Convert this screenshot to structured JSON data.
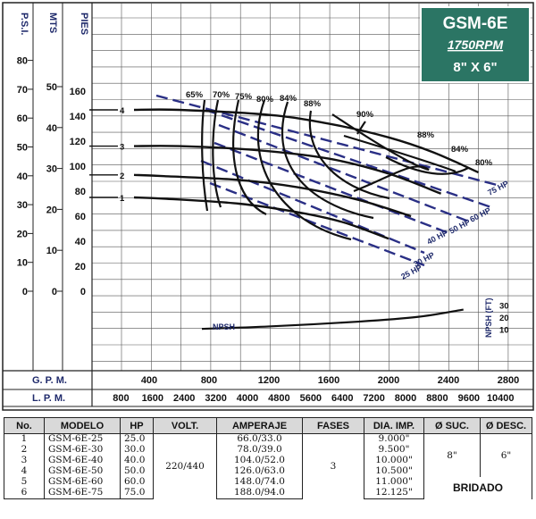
{
  "badge": {
    "model": "GSM-6E",
    "rpm": "1750RPM",
    "size": "8\" X 6\""
  },
  "chart_data": {
    "type": "line",
    "axes": {
      "psi": {
        "title": "P.S.I.",
        "ticks": [
          0,
          10,
          20,
          30,
          40,
          50,
          60,
          70,
          80
        ]
      },
      "mts": {
        "title": "MTS",
        "ticks": [
          0,
          10,
          20,
          30,
          40,
          50
        ]
      },
      "pies": {
        "title": "PIES",
        "ticks": [
          0,
          20,
          40,
          60,
          80,
          100,
          120,
          140,
          160
        ]
      },
      "gpm": {
        "title": "G. P. M.",
        "ticks": [
          400,
          800,
          1200,
          1600,
          2000,
          2400,
          2800
        ]
      },
      "lpm": {
        "title": "L. P. M.",
        "ticks": [
          800,
          1600,
          2400,
          3200,
          4000,
          4800,
          5600,
          6400,
          7200,
          8000,
          8800,
          9600,
          10400
        ]
      },
      "npsh": {
        "title": "NPSH (FT)",
        "ticks": [
          10,
          20,
          30
        ]
      }
    },
    "head_curves": [
      {
        "name": "1",
        "points": [
          [
            0,
            75
          ],
          [
            500,
            74
          ],
          [
            1000,
            70
          ],
          [
            1400,
            63
          ],
          [
            1700,
            55
          ],
          [
            2000,
            42
          ]
        ]
      },
      {
        "name": "2",
        "points": [
          [
            0,
            93
          ],
          [
            500,
            92
          ],
          [
            1000,
            89
          ],
          [
            1400,
            83
          ],
          [
            1800,
            73
          ],
          [
            2150,
            60
          ]
        ]
      },
      {
        "name": "3",
        "points": [
          [
            0,
            116
          ],
          [
            600,
            116
          ],
          [
            1100,
            113
          ],
          [
            1600,
            106
          ],
          [
            2000,
            94
          ],
          [
            2350,
            78
          ]
        ]
      },
      {
        "name": "4",
        "points": [
          [
            0,
            145
          ],
          [
            600,
            145
          ],
          [
            1200,
            141
          ],
          [
            1600,
            134
          ],
          [
            2000,
            123
          ],
          [
            2300,
            111
          ],
          [
            2600,
            95
          ]
        ]
      }
    ],
    "efficiency_labels": [
      "65%",
      "70%",
      "75%",
      "80%",
      "84%",
      "88%",
      "90%",
      "88%",
      "84%",
      "80%"
    ],
    "hp_lines": [
      "25 HP",
      "30 HP",
      "40 HP",
      "50 HP",
      "60 HP",
      "75 HP"
    ],
    "npsh_label": "NPSH",
    "npsh_curve": {
      "points": [
        [
          600,
          11
        ],
        [
          1200,
          13
        ],
        [
          1800,
          17
        ],
        [
          2200,
          21
        ],
        [
          2500,
          27
        ]
      ]
    }
  },
  "table": {
    "headers": [
      "No.",
      "MODELO",
      "HP",
      "VOLT.",
      "AMPERAJE",
      "FASES",
      "DIA. IMP.",
      "Ø SUC.",
      "Ø DESC."
    ],
    "rows": [
      {
        "no": "1",
        "modelo": "GSM-6E-25",
        "hp": "25.0",
        "amperaje": "66.0/33.0",
        "dia": "9.000\""
      },
      {
        "no": "2",
        "modelo": "GSM-6E-30",
        "hp": "30.0",
        "amperaje": "78.0/39.0",
        "dia": "9.500\""
      },
      {
        "no": "3",
        "modelo": "GSM-6E-40",
        "hp": "40.0",
        "amperaje": "104.0/52.0",
        "dia": "10.000\""
      },
      {
        "no": "4",
        "modelo": "GSM-6E-50",
        "hp": "50.0",
        "amperaje": "126.0/63.0",
        "dia": "10.500\""
      },
      {
        "no": "5",
        "modelo": "GSM-6E-60",
        "hp": "60.0",
        "amperaje": "148.0/74.0",
        "dia": "11.000\""
      },
      {
        "no": "6",
        "modelo": "GSM-6E-75",
        "hp": "75.0",
        "amperaje": "188.0/94.0",
        "dia": "12.125\""
      }
    ],
    "volt": "220/440",
    "fases": "3",
    "suc": "8\"",
    "desc": "6\"",
    "connection": "BRIDADO"
  }
}
